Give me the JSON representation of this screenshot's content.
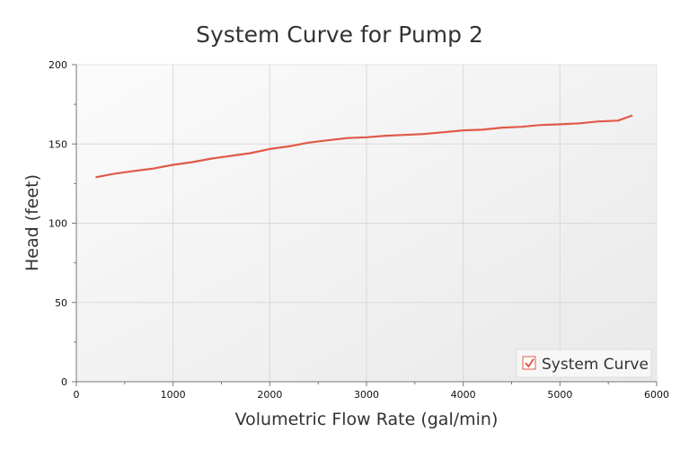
{
  "chart_data": {
    "type": "line",
    "title": "System Curve for Pump 2",
    "xlabel": "Volumetric Flow Rate (gal/min)",
    "ylabel": "Head (feet)",
    "xlim": [
      0,
      6000
    ],
    "ylim": [
      0,
      200
    ],
    "xticks": [
      0,
      1000,
      2000,
      3000,
      4000,
      5000,
      6000
    ],
    "yticks": [
      0,
      50,
      100,
      150,
      200
    ],
    "grid": true,
    "legend_placement": "bottom-right",
    "colors": {
      "series": "#e05a47",
      "grid": "#d9d9d9"
    },
    "series": [
      {
        "name": "System Curve",
        "legend_checked": true,
        "x": [
          200,
          400,
          600,
          800,
          1000,
          1200,
          1400,
          1600,
          1800,
          2000,
          2200,
          2400,
          2600,
          2800,
          3000,
          3200,
          3400,
          3600,
          3800,
          4000,
          4200,
          4400,
          4600,
          4800,
          5000,
          5200,
          5400,
          5600,
          5750
        ],
        "y": [
          129,
          131.3,
          133,
          134.5,
          136.8,
          138.5,
          140.8,
          142.5,
          144.2,
          146.8,
          148.5,
          150.8,
          152.3,
          153.7,
          154.2,
          155.2,
          155.7,
          156.3,
          157.4,
          158.6,
          159,
          160.3,
          160.8,
          161.9,
          162.4,
          163,
          164.2,
          164.7,
          168
        ]
      }
    ]
  }
}
